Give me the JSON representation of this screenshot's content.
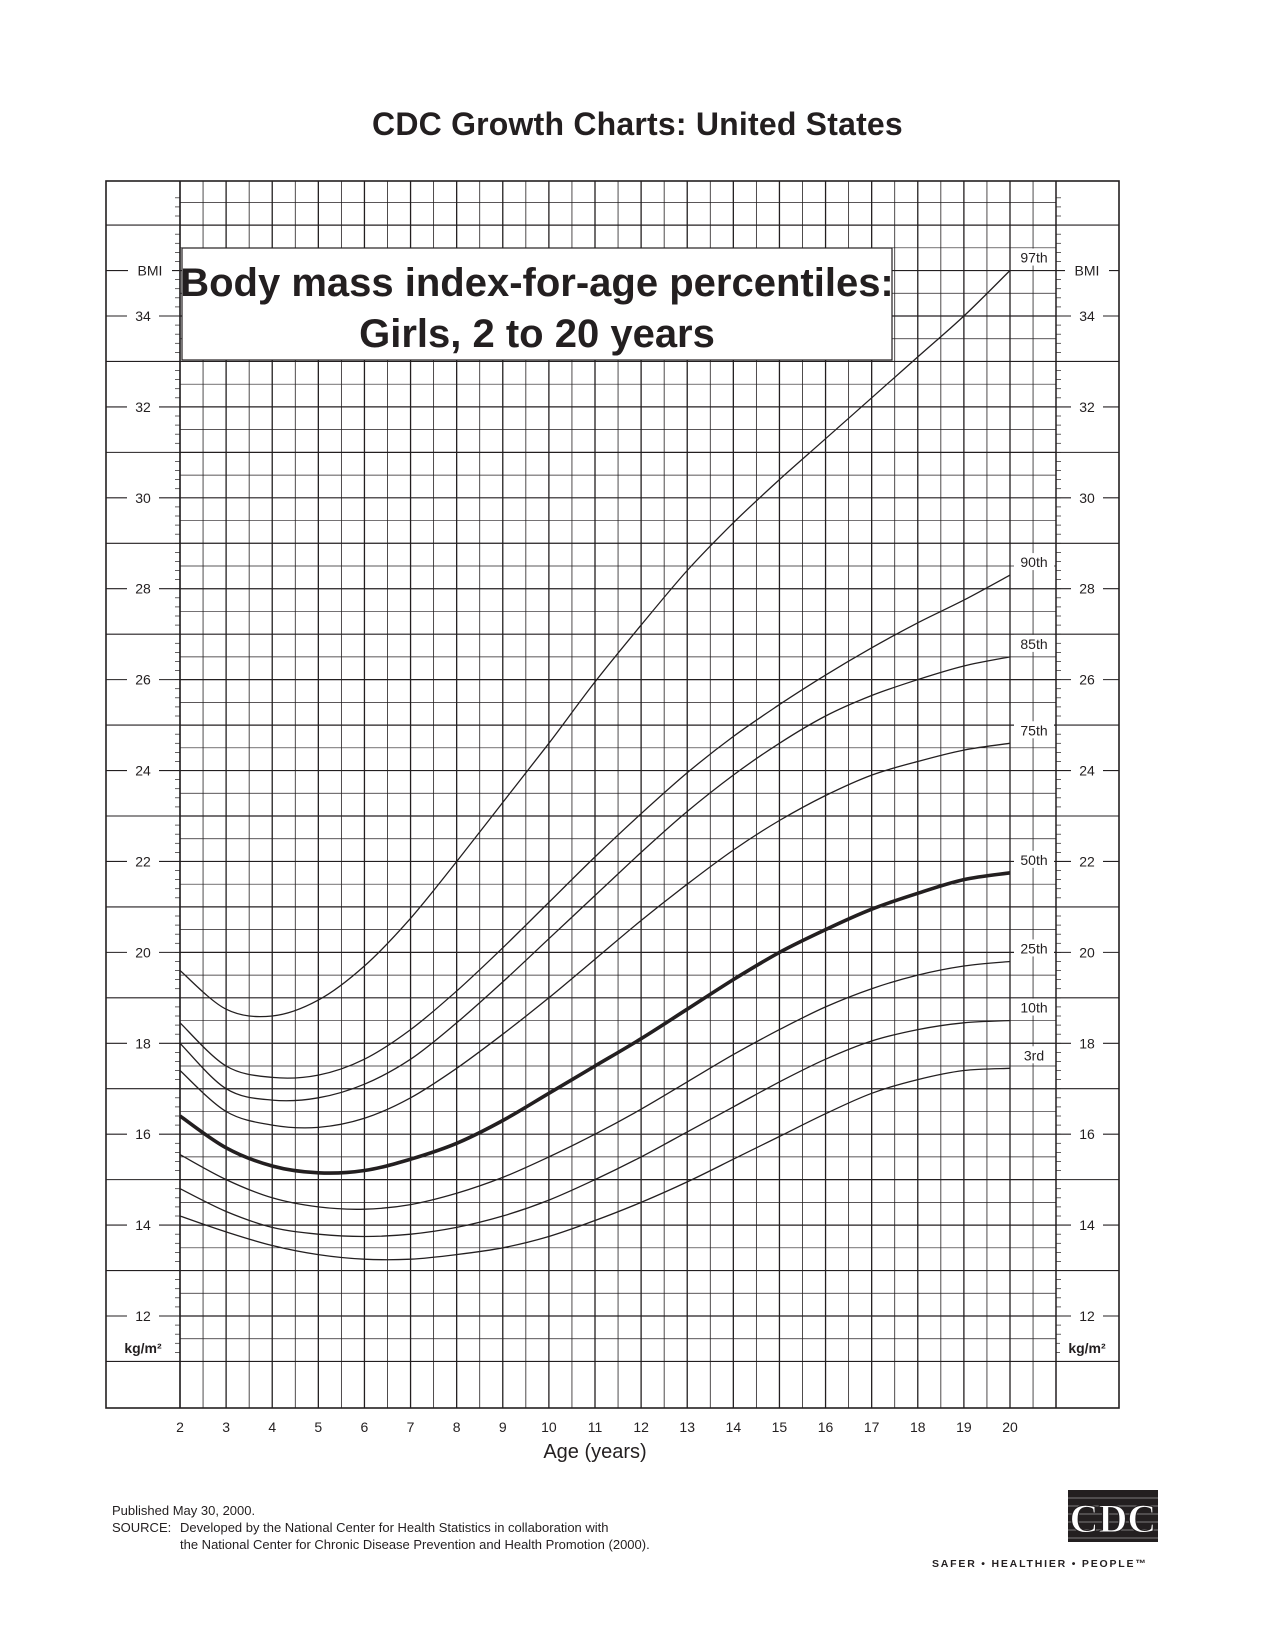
{
  "header": {
    "title": "CDC Growth Charts: United States"
  },
  "chart_data": {
    "type": "line",
    "title_line1": "Body mass index-for-age percentiles:",
    "title_line2": "Girls, 2 to 20 years",
    "xlabel": "Age (years)",
    "ylabel": "BMI",
    "yunit": "kg/m²",
    "xlim": [
      2,
      20
    ],
    "ylim": [
      11,
      37
    ],
    "xticks": [
      2,
      3,
      4,
      5,
      6,
      7,
      8,
      9,
      10,
      11,
      12,
      13,
      14,
      15,
      16,
      17,
      18,
      19,
      20
    ],
    "yticks": [
      12,
      14,
      16,
      18,
      20,
      22,
      24,
      26,
      28,
      30,
      32,
      34
    ],
    "grid": true,
    "series": [
      {
        "name": "3rd",
        "label": "3rd",
        "bold": false,
        "x": [
          2,
          3,
          4,
          5,
          6,
          7,
          8,
          9,
          10,
          11,
          12,
          13,
          14,
          15,
          16,
          17,
          18,
          19,
          20
        ],
        "y": [
          14.2,
          13.85,
          13.55,
          13.35,
          13.25,
          13.25,
          13.35,
          13.5,
          13.75,
          14.1,
          14.5,
          14.95,
          15.45,
          15.95,
          16.45,
          16.9,
          17.2,
          17.4,
          17.45
        ]
      },
      {
        "name": "10th",
        "label": "10th",
        "bold": false,
        "x": [
          2,
          3,
          4,
          5,
          6,
          7,
          8,
          9,
          10,
          11,
          12,
          13,
          14,
          15,
          16,
          17,
          18,
          19,
          20
        ],
        "y": [
          14.8,
          14.3,
          13.95,
          13.8,
          13.75,
          13.8,
          13.95,
          14.2,
          14.55,
          15.0,
          15.5,
          16.05,
          16.6,
          17.15,
          17.65,
          18.05,
          18.3,
          18.45,
          18.5
        ]
      },
      {
        "name": "25th",
        "label": "25th",
        "bold": false,
        "x": [
          2,
          3,
          4,
          5,
          6,
          7,
          8,
          9,
          10,
          11,
          12,
          13,
          14,
          15,
          16,
          17,
          18,
          19,
          20
        ],
        "y": [
          15.55,
          15.0,
          14.6,
          14.4,
          14.35,
          14.45,
          14.7,
          15.05,
          15.5,
          16.0,
          16.55,
          17.15,
          17.75,
          18.3,
          18.8,
          19.2,
          19.5,
          19.7,
          19.8
        ]
      },
      {
        "name": "50th",
        "label": "50th",
        "bold": true,
        "x": [
          2,
          3,
          4,
          5,
          6,
          7,
          8,
          9,
          10,
          11,
          12,
          13,
          14,
          15,
          16,
          17,
          18,
          19,
          20
        ],
        "y": [
          16.4,
          15.7,
          15.3,
          15.15,
          15.2,
          15.45,
          15.8,
          16.3,
          16.9,
          17.5,
          18.1,
          18.75,
          19.4,
          20.0,
          20.5,
          20.95,
          21.3,
          21.6,
          21.75
        ]
      },
      {
        "name": "75th",
        "label": "75th",
        "bold": false,
        "x": [
          2,
          3,
          4,
          5,
          6,
          7,
          8,
          9,
          10,
          11,
          12,
          13,
          14,
          15,
          16,
          17,
          18,
          19,
          20
        ],
        "y": [
          17.4,
          16.5,
          16.2,
          16.15,
          16.35,
          16.8,
          17.45,
          18.2,
          19.0,
          19.85,
          20.7,
          21.5,
          22.25,
          22.9,
          23.45,
          23.9,
          24.2,
          24.45,
          24.6
        ]
      },
      {
        "name": "85th",
        "label": "85th",
        "bold": false,
        "x": [
          2,
          3,
          4,
          5,
          6,
          7,
          8,
          9,
          10,
          11,
          12,
          13,
          14,
          15,
          16,
          17,
          18,
          19,
          20
        ],
        "y": [
          18.0,
          17.0,
          16.75,
          16.8,
          17.1,
          17.65,
          18.45,
          19.35,
          20.3,
          21.25,
          22.2,
          23.1,
          23.9,
          24.6,
          25.2,
          25.65,
          26.0,
          26.3,
          26.5
        ]
      },
      {
        "name": "90th",
        "label": "90th",
        "bold": false,
        "x": [
          2,
          3,
          4,
          5,
          6,
          7,
          8,
          9,
          10,
          11,
          12,
          13,
          14,
          15,
          16,
          17,
          18,
          19,
          20
        ],
        "y": [
          18.45,
          17.5,
          17.25,
          17.3,
          17.65,
          18.3,
          19.15,
          20.1,
          21.1,
          22.1,
          23.05,
          23.95,
          24.75,
          25.45,
          26.1,
          26.7,
          27.25,
          27.75,
          28.3
        ]
      },
      {
        "name": "97th",
        "label": "97th",
        "bold": false,
        "x": [
          2,
          3,
          4,
          5,
          6,
          7,
          8,
          9,
          10,
          11,
          12,
          13,
          14,
          15,
          16,
          17,
          18,
          19,
          20
        ],
        "y": [
          19.6,
          18.75,
          18.6,
          18.95,
          19.7,
          20.75,
          22.0,
          23.3,
          24.6,
          25.95,
          27.2,
          28.4,
          29.45,
          30.4,
          31.3,
          32.2,
          33.1,
          34.0,
          35.0
        ]
      }
    ]
  },
  "footer": {
    "published": "Published May 30, 2000.",
    "source_label": "SOURCE:",
    "source_line1": "Developed by the National Center for Health Statistics in collaboration with",
    "source_line2": "the National Center for Chronic Disease Prevention and Health Promotion (2000)."
  },
  "logo": {
    "text": "CDC",
    "tagline": "SAFER • HEALTHIER • PEOPLE™"
  }
}
